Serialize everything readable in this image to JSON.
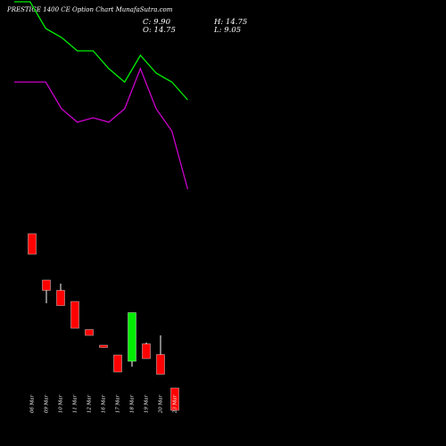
{
  "chart_data": {
    "type": "candlestick",
    "title": "PRESTIGE 1400  CE Option  Chart MunafaSutra.com",
    "ohlc_labels": {
      "close": "C: 9.90",
      "high": "H: 14.75",
      "open": "O: 14.75",
      "low": "L: 9.05"
    },
    "categories": [
      "06 Mar",
      "09 Mar",
      "10 Mar",
      "11 Mar",
      "12 Mar",
      "16 Mar",
      "17 Mar",
      "18 Mar",
      "19 Mar",
      "20 Mar",
      "23 Mar"
    ],
    "candles": [
      {
        "open": 28.0,
        "high": 28.0,
        "low": 23.4,
        "close": 23.4
      },
      {
        "open": 17.6,
        "high": 17.6,
        "low": 12.4,
        "close": 15.3
      },
      {
        "open": 15.3,
        "high": 16.8,
        "low": 11.9,
        "close": 11.9
      },
      {
        "open": 12.8,
        "high": 12.8,
        "low": 6.8,
        "close": 6.8
      },
      {
        "open": 6.5,
        "high": 6.5,
        "low": 5.2,
        "close": 5.2
      },
      {
        "open": 3.0,
        "high": 3.0,
        "low": 2.6,
        "close": 2.6
      },
      {
        "open": 0.8,
        "high": 0.8,
        "low": -3.0,
        "close": -3.0
      },
      {
        "open": -0.6,
        "high": 10.3,
        "low": -1.8,
        "close": 10.3
      },
      {
        "open": 3.3,
        "high": 3.6,
        "low": 0.0,
        "close": 0.0
      },
      {
        "open": 0.9,
        "high": 5.2,
        "low": -3.5,
        "close": -3.5
      },
      {
        "open": -6.6,
        "high": -6.6,
        "low": -11.6,
        "close": -11.6
      }
    ],
    "overlay_lines": [
      {
        "color": "#00ee00",
        "x_range": [
          -1.25,
          10.9
        ],
        "values": [
          80,
          80,
          74,
          72,
          69,
          69,
          65,
          62,
          68,
          64,
          62,
          58
        ]
      },
      {
        "color": "#cc00cc",
        "x_range": [
          -1.25,
          10.9
        ],
        "values": [
          62,
          62,
          62,
          56,
          53,
          54,
          53,
          56,
          65,
          56,
          51,
          38
        ]
      }
    ],
    "colors": {
      "up": "#00ee00",
      "down": "#ff0000",
      "background": "#000000",
      "text": "#ffffff"
    },
    "grid": false,
    "legend": "none"
  }
}
